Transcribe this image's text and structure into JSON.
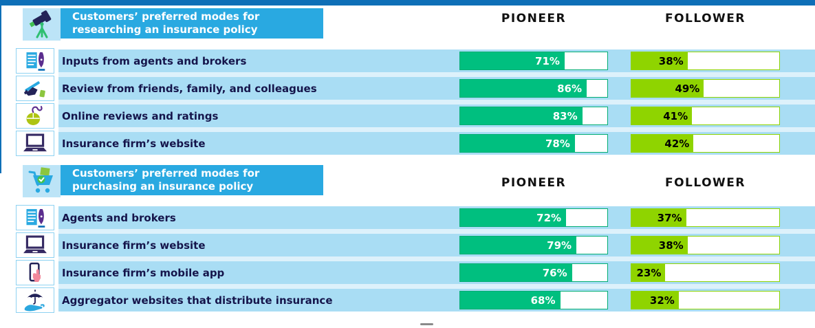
{
  "colors": {
    "top_bar": "#0e6fb7",
    "section_header": "#29a9e1",
    "row_band": "#a9ddf4",
    "pioneer_green": "#00bf7f",
    "follower_lime": "#8fd400",
    "label_navy": "#15154b"
  },
  "sections": [
    {
      "icon": "telescope-icon",
      "title_line1": "Customers’ preferred modes for",
      "title_line2": "researching an insurance policy",
      "col_pioneer": "PIONEER",
      "col_follower": "FOLLOWER",
      "rows": [
        {
          "icon": "document-pen-icon",
          "label": "Inputs from agents and brokers",
          "pioneer": "71%",
          "follower": "38%"
        },
        {
          "icon": "hand-writing-icon",
          "label": "Review from friends, family, and colleagues",
          "pioneer": "86%",
          "follower": "49%"
        },
        {
          "icon": "computer-mouse-icon",
          "label": "Online reviews and ratings",
          "pioneer": "83%",
          "follower": "41%"
        },
        {
          "icon": "laptop-icon",
          "label": "Insurance firm’s website",
          "pioneer": "78%",
          "follower": "42%"
        }
      ]
    },
    {
      "icon": "shopping-cart-icon",
      "title_line1": "Customers’ preferred modes for",
      "title_line2": "purchasing an insurance policy",
      "col_pioneer": "PIONEER",
      "col_follower": "FOLLOWER",
      "rows": [
        {
          "icon": "document-pen-icon",
          "label": "Agents and brokers",
          "pioneer": "72%",
          "follower": "37%"
        },
        {
          "icon": "laptop-icon",
          "label": "Insurance firm’s website",
          "pioneer": "79%",
          "follower": "38%"
        },
        {
          "icon": "mobile-tap-icon",
          "label": "Insurance firm’s mobile app",
          "pioneer": "76%",
          "follower": "23%"
        },
        {
          "icon": "umbrella-hand-icon",
          "label": "Aggregator websites that distribute insurance",
          "pioneer": "68%",
          "follower": "32%"
        }
      ]
    }
  ],
  "chart_data": [
    {
      "type": "bar",
      "title": "Customers’ preferred modes for researching an insurance policy",
      "categories": [
        "Inputs from agents and brokers",
        "Review from friends, family, and colleagues",
        "Online reviews and ratings",
        "Insurance firm’s website"
      ],
      "series": [
        {
          "name": "PIONEER",
          "values": [
            71,
            86,
            83,
            78
          ]
        },
        {
          "name": "FOLLOWER",
          "values": [
            38,
            49,
            41,
            42
          ]
        }
      ],
      "unit": "%",
      "xlim": [
        0,
        100
      ],
      "legend_position": "column-headers",
      "grid": false
    },
    {
      "type": "bar",
      "title": "Customers’ preferred modes for purchasing an insurance policy",
      "categories": [
        "Agents and brokers",
        "Insurance firm’s website",
        "Insurance firm’s mobile app",
        "Aggregator websites that distribute insurance"
      ],
      "series": [
        {
          "name": "PIONEER",
          "values": [
            72,
            79,
            76,
            68
          ]
        },
        {
          "name": "FOLLOWER",
          "values": [
            37,
            38,
            23,
            32
          ]
        }
      ],
      "unit": "%",
      "xlim": [
        0,
        100
      ],
      "legend_position": "column-headers",
      "grid": false
    }
  ]
}
